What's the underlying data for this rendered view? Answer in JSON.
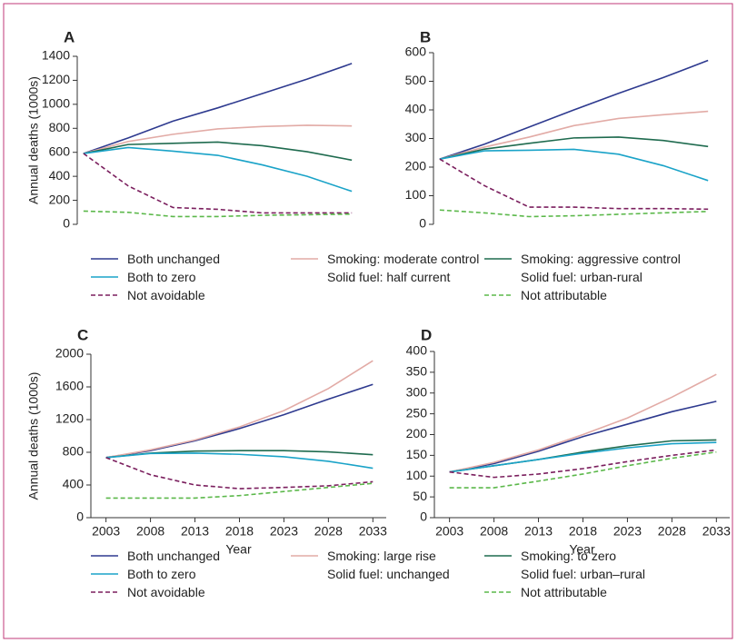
{
  "chart_data": [
    {
      "type": "line",
      "title": "A",
      "ylabel": "Annual deaths (1000s)",
      "x": [
        2003,
        2008,
        2013,
        2018,
        2023,
        2028,
        2033
      ],
      "xlim": [
        2002.3,
        2034
      ],
      "ylim": [
        0,
        1400
      ],
      "yticks": [
        0,
        200,
        400,
        600,
        800,
        1000,
        1200,
        1400
      ],
      "series": [
        {
          "name": "Both unchanged",
          "color": "#2e3a8f",
          "dash": false,
          "values": [
            590,
            720,
            860,
            970,
            1090,
            1210,
            1340
          ]
        },
        {
          "name": "Smoking: moderate control\nSolid fuel: half current",
          "color": "#e2aba6",
          "dash": false,
          "values": [
            590,
            690,
            750,
            795,
            815,
            825,
            820
          ]
        },
        {
          "name": "Smoking: aggressive control\nSolid fuel: urban-rural",
          "color": "#1f6b4f",
          "dash": false,
          "values": [
            590,
            665,
            675,
            685,
            655,
            605,
            535
          ]
        },
        {
          "name": "Both to zero",
          "color": "#1aa3c8",
          "dash": false,
          "values": [
            590,
            640,
            610,
            575,
            495,
            400,
            275
          ]
        },
        {
          "name": "Not avoidable",
          "color": "#7b1f5e",
          "dash": true,
          "values": [
            590,
            320,
            140,
            125,
            95,
            95,
            95
          ]
        },
        {
          "name": "Not attributable",
          "color": "#5bb84a",
          "dash": true,
          "values": [
            110,
            100,
            65,
            65,
            75,
            80,
            85
          ]
        }
      ]
    },
    {
      "type": "line",
      "title": "B",
      "x": [
        2003,
        2008,
        2013,
        2018,
        2023,
        2028,
        2033
      ],
      "xlim": [
        2002.3,
        2034
      ],
      "ylim": [
        0,
        600
      ],
      "yticks": [
        0,
        100,
        200,
        300,
        400,
        500,
        600
      ],
      "series": [
        {
          "color": "#2e3a8f",
          "dash": false,
          "values": [
            228,
            280,
            340,
            400,
            458,
            513,
            573
          ]
        },
        {
          "color": "#e2aba6",
          "dash": false,
          "values": [
            228,
            270,
            305,
            345,
            370,
            383,
            395
          ]
        },
        {
          "color": "#1f6b4f",
          "dash": false,
          "values": [
            228,
            263,
            283,
            302,
            305,
            293,
            272
          ]
        },
        {
          "color": "#1aa3c8",
          "dash": false,
          "values": [
            228,
            257,
            259,
            262,
            245,
            205,
            153
          ]
        },
        {
          "color": "#7b1f5e",
          "dash": true,
          "values": [
            228,
            135,
            60,
            60,
            55,
            55,
            53
          ]
        },
        {
          "color": "#5bb84a",
          "dash": true,
          "values": [
            50,
            40,
            27,
            30,
            35,
            40,
            45
          ]
        }
      ]
    },
    {
      "type": "line",
      "title": "C",
      "ylabel": "Annual deaths (1000s)",
      "xlabel": "Year",
      "x": [
        2003,
        2008,
        2013,
        2018,
        2023,
        2028,
        2033
      ],
      "xlim": [
        2001.3,
        2034.5
      ],
      "xticks": [
        2003,
        2008,
        2013,
        2018,
        2023,
        2028,
        2033
      ],
      "ylim": [
        0,
        2000
      ],
      "yticks": [
        0,
        400,
        800,
        1200,
        1600,
        2000
      ],
      "series": [
        {
          "name": "Both unchanged",
          "color": "#2e3a8f",
          "dash": false,
          "values": [
            735,
            820,
            940,
            1090,
            1260,
            1450,
            1630
          ]
        },
        {
          "name": "Smoking: large rise\nSolid fuel: unchanged",
          "color": "#e2aba6",
          "dash": false,
          "values": [
            735,
            830,
            950,
            1110,
            1310,
            1580,
            1920
          ]
        },
        {
          "name": "Smoking: to zero\nSolid fuel: urban–rural",
          "color": "#1f6b4f",
          "dash": false,
          "values": [
            735,
            790,
            815,
            820,
            820,
            805,
            770
          ]
        },
        {
          "name": "Both to zero",
          "color": "#1aa3c8",
          "dash": false,
          "values": [
            735,
            785,
            790,
            775,
            745,
            690,
            605
          ]
        },
        {
          "name": "Not avoidable",
          "color": "#7b1f5e",
          "dash": true,
          "values": [
            735,
            525,
            400,
            355,
            370,
            390,
            440
          ]
        },
        {
          "name": "Not attributable",
          "color": "#5bb84a",
          "dash": true,
          "values": [
            240,
            240,
            240,
            270,
            320,
            370,
            420
          ]
        }
      ]
    },
    {
      "type": "line",
      "title": "D",
      "xlabel": "Year",
      "x": [
        2003,
        2008,
        2013,
        2018,
        2023,
        2028,
        2033
      ],
      "xlim": [
        2001.3,
        2034.5
      ],
      "xticks": [
        2003,
        2008,
        2013,
        2018,
        2023,
        2028,
        2033
      ],
      "ylim": [
        0,
        400
      ],
      "yticks": [
        0,
        50,
        100,
        150,
        200,
        250,
        300,
        350,
        400
      ],
      "series": [
        {
          "color": "#2e3a8f",
          "dash": false,
          "values": [
            110,
            130,
            160,
            195,
            225,
            255,
            280
          ]
        },
        {
          "color": "#e2aba6",
          "dash": false,
          "values": [
            110,
            133,
            163,
            200,
            240,
            290,
            345
          ]
        },
        {
          "color": "#1f6b4f",
          "dash": false,
          "values": [
            110,
            125,
            140,
            158,
            173,
            185,
            187
          ]
        },
        {
          "color": "#1aa3c8",
          "dash": false,
          "values": [
            110,
            125,
            140,
            155,
            168,
            178,
            181
          ]
        },
        {
          "color": "#7b1f5e",
          "dash": true,
          "values": [
            110,
            97,
            105,
            118,
            135,
            150,
            163
          ]
        },
        {
          "color": "#5bb84a",
          "dash": true,
          "values": [
            72,
            72,
            88,
            105,
            125,
            143,
            158
          ]
        }
      ]
    }
  ]
}
